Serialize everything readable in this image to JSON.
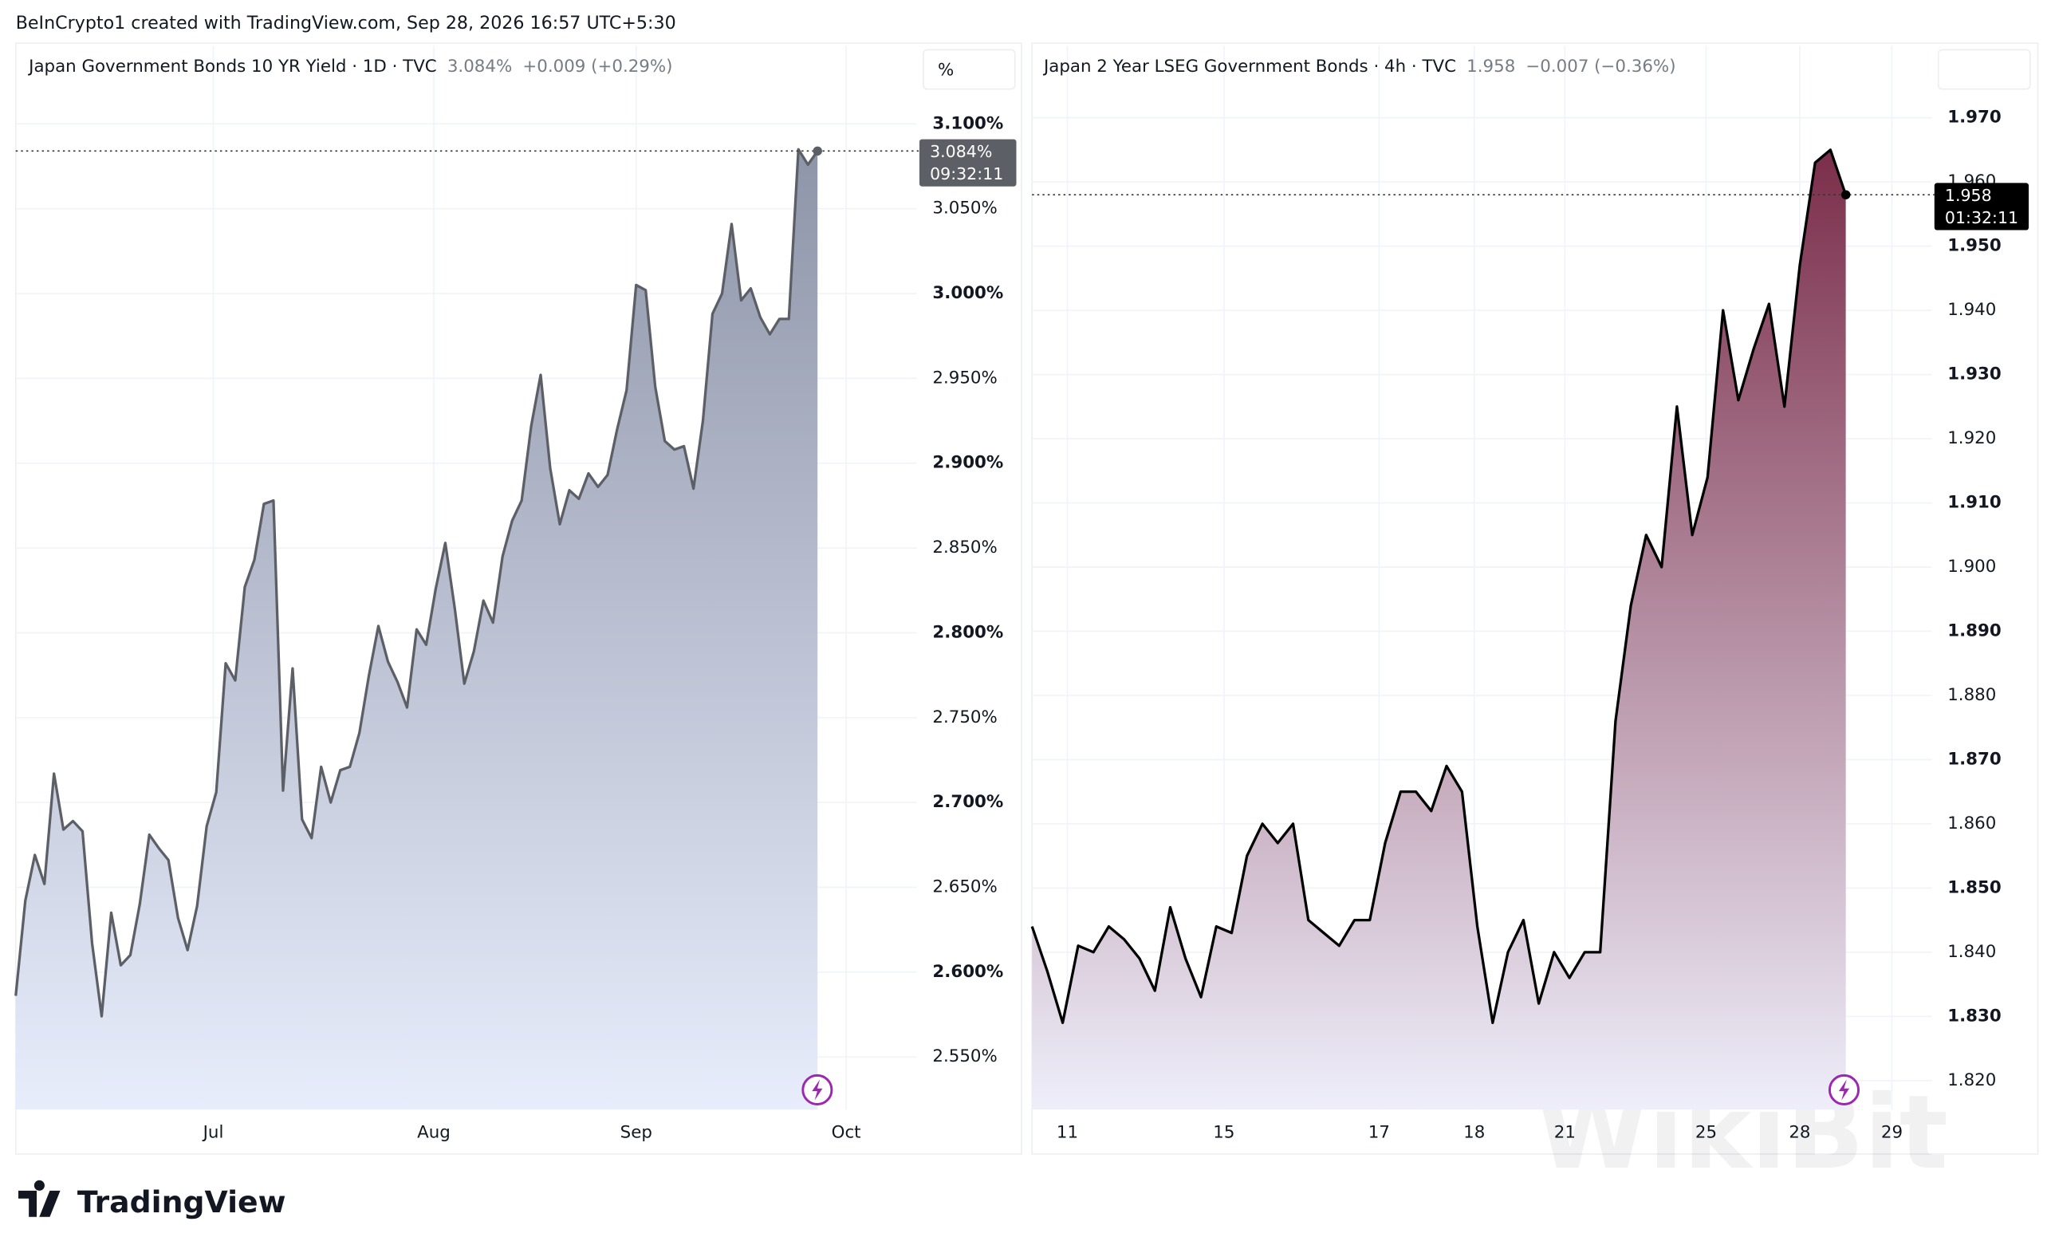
{
  "header": {
    "attribution": "BeInCrypto1 created with TradingView.com, Sep 28, 2026 16:57 UTC+5:30"
  },
  "footer": {
    "logo": "TradingView"
  },
  "watermark": "WikiBit",
  "chart_data": [
    {
      "type": "line",
      "title": "Japan Government Bonds 10 YR Yield · 1D · TVC",
      "price": "3.084%",
      "change": "+0.009 (+0.29%)",
      "countdown": "09:32:11",
      "unit": "%",
      "color": "#5d5f66",
      "fill_top": "#8e95a8",
      "fill_bottom": "#e8edfc",
      "price_box": "#5d5f66",
      "grid": true,
      "values": [
        2.586,
        2.642,
        2.669,
        2.652,
        2.717,
        2.684,
        2.689,
        2.683,
        2.617,
        2.574,
        2.635,
        2.604,
        2.61,
        2.64,
        2.681,
        2.673,
        2.666,
        2.632,
        2.613,
        2.639,
        2.686,
        2.706,
        2.782,
        2.772,
        2.827,
        2.843,
        2.876,
        2.878,
        2.707,
        2.779,
        2.69,
        2.679,
        2.721,
        2.7,
        2.719,
        2.721,
        2.741,
        2.775,
        2.804,
        2.783,
        2.771,
        2.756,
        2.802,
        2.793,
        2.826,
        2.853,
        2.814,
        2.77,
        2.789,
        2.819,
        2.806,
        2.845,
        2.866,
        2.878,
        2.922,
        2.952,
        2.897,
        2.864,
        2.884,
        2.879,
        2.894,
        2.886,
        2.893,
        2.92,
        2.943,
        3.005,
        3.002,
        2.945,
        2.913,
        2.908,
        2.91,
        2.885,
        2.925,
        2.988,
        3.0,
        3.041,
        2.996,
        3.003,
        2.986,
        2.976,
        2.985,
        2.985,
        3.085,
        3.076,
        3.084
      ],
      "xlim": [
        0,
        94.4
      ],
      "xticks": [
        {
          "value": 20.7,
          "label": "Jul"
        },
        {
          "value": 43.8,
          "label": "Aug"
        },
        {
          "value": 65.0,
          "label": "Sep"
        },
        {
          "value": 87.0,
          "label": "Oct"
        }
      ],
      "ylim": [
        2.519,
        3.146
      ],
      "yticks": [
        {
          "value": 2.55,
          "label": "2.550%"
        },
        {
          "value": 2.6,
          "label": "2.600%"
        },
        {
          "value": 2.65,
          "label": "2.650%"
        },
        {
          "value": 2.7,
          "label": "2.700%"
        },
        {
          "value": 2.75,
          "label": "2.750%"
        },
        {
          "value": 2.8,
          "label": "2.800%"
        },
        {
          "value": 2.85,
          "label": "2.850%"
        },
        {
          "value": 2.9,
          "label": "2.900%"
        },
        {
          "value": 2.95,
          "label": "2.950%"
        },
        {
          "value": 3.0,
          "label": "3.000%"
        },
        {
          "value": 3.05,
          "label": "3.050%"
        },
        {
          "value": 3.1,
          "label": "3.100%"
        }
      ]
    },
    {
      "type": "line",
      "title": "Japan 2 Year LSEG Government Bonds · 4h · TVC",
      "price": "1.958",
      "change": "−0.007 (−0.36%)",
      "countdown": "01:32:11",
      "color": "#000000",
      "fill_top": "#7b2e4a",
      "fill_bottom": "#eeeefa",
      "price_box": "#000000",
      "grid": true,
      "values": [
        1.844,
        1.837,
        1.829,
        1.841,
        1.84,
        1.844,
        1.842,
        1.839,
        1.834,
        1.847,
        1.839,
        1.833,
        1.844,
        1.843,
        1.855,
        1.86,
        1.857,
        1.86,
        1.845,
        1.843,
        1.841,
        1.845,
        1.845,
        1.857,
        1.865,
        1.865,
        1.862,
        1.869,
        1.865,
        1.844,
        1.829,
        1.84,
        1.845,
        1.832,
        1.84,
        1.836,
        1.84,
        1.84,
        1.876,
        1.894,
        1.905,
        1.9,
        1.925,
        1.905,
        1.914,
        1.94,
        1.926,
        1.934,
        1.941,
        1.925,
        1.947,
        1.963,
        1.965,
        1.958
      ],
      "xlim": [
        0,
        58.6
      ],
      "xticks": [
        {
          "value": 2.3,
          "label": "11"
        },
        {
          "value": 12.5,
          "label": "15"
        },
        {
          "value": 22.6,
          "label": "17"
        },
        {
          "value": 28.8,
          "label": "18"
        },
        {
          "value": 34.7,
          "label": "21"
        },
        {
          "value": 43.9,
          "label": "25"
        },
        {
          "value": 50.0,
          "label": "28"
        },
        {
          "value": 56.0,
          "label": "29"
        }
      ],
      "ylim": [
        1.8155,
        1.9812
      ],
      "yticks": [
        {
          "value": 1.82,
          "label": "1.820"
        },
        {
          "value": 1.83,
          "label": "1.830"
        },
        {
          "value": 1.84,
          "label": "1.840"
        },
        {
          "value": 1.85,
          "label": "1.850"
        },
        {
          "value": 1.86,
          "label": "1.860"
        },
        {
          "value": 1.87,
          "label": "1.870"
        },
        {
          "value": 1.88,
          "label": "1.880"
        },
        {
          "value": 1.89,
          "label": "1.890"
        },
        {
          "value": 1.9,
          "label": "1.900"
        },
        {
          "value": 1.91,
          "label": "1.910"
        },
        {
          "value": 1.92,
          "label": "1.920"
        },
        {
          "value": 1.93,
          "label": "1.930"
        },
        {
          "value": 1.94,
          "label": "1.940"
        },
        {
          "value": 1.95,
          "label": "1.950"
        },
        {
          "value": 1.96,
          "label": "1.960"
        },
        {
          "value": 1.97,
          "label": "1.970"
        }
      ]
    }
  ]
}
